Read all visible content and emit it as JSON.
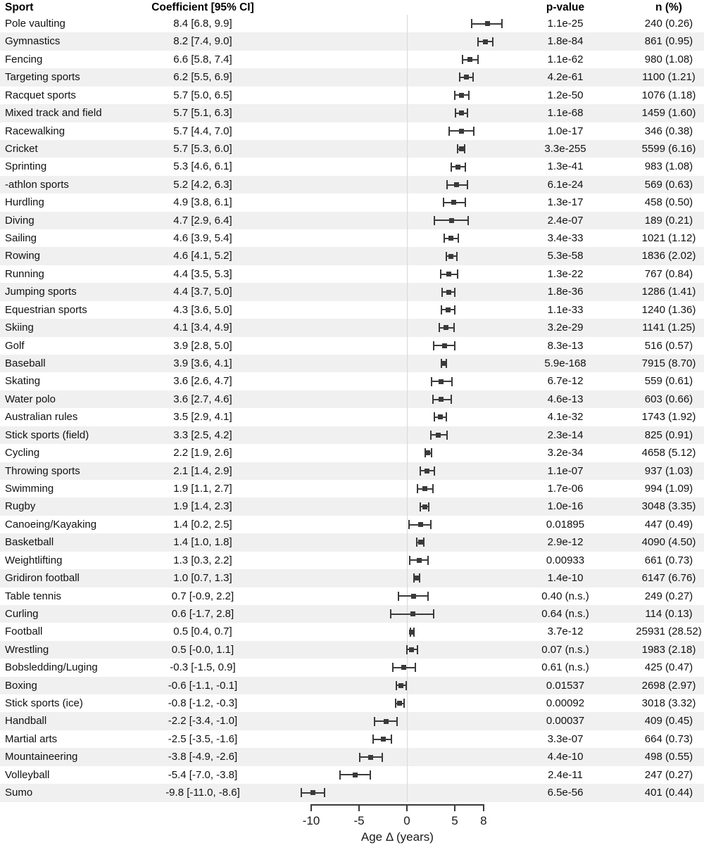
{
  "headers": {
    "sport": "Sport",
    "coefficient": "Coefficient [95% CI]",
    "p_value": "p-value",
    "n": "n (%)"
  },
  "colors": {
    "marker": "#3a3a3a",
    "stripe": "#f0f0f0",
    "reference_line": "#d8d8d8",
    "axis": "#3a3a3a"
  },
  "chart_data": {
    "type": "scatter",
    "subtype": "forest-plot",
    "title": "",
    "xlabel": "Age Δ (years)",
    "x_ticks": [
      -10,
      -5,
      0,
      5,
      8
    ],
    "xlim": [
      -11.5,
      10.5
    ],
    "reference_x": 0,
    "grid": false,
    "legend": "none",
    "columns": [
      "Sport",
      "Coefficient [95% CI]",
      "p-value",
      "n (%)"
    ],
    "rows": [
      {
        "sport": "Pole vaulting",
        "coef_label": "8.4 [6.8, 9.9]",
        "est": 8.4,
        "lo": 6.8,
        "hi": 9.9,
        "p": "1.1e-25",
        "n": "240 (0.26)"
      },
      {
        "sport": "Gymnastics",
        "coef_label": "8.2 [7.4, 9.0]",
        "est": 8.2,
        "lo": 7.4,
        "hi": 9.0,
        "p": "1.8e-84",
        "n": "861 (0.95)"
      },
      {
        "sport": "Fencing",
        "coef_label": "6.6 [5.8, 7.4]",
        "est": 6.6,
        "lo": 5.8,
        "hi": 7.4,
        "p": "1.1e-62",
        "n": "980 (1.08)"
      },
      {
        "sport": "Targeting sports",
        "coef_label": "6.2 [5.5, 6.9]",
        "est": 6.2,
        "lo": 5.5,
        "hi": 6.9,
        "p": "4.2e-61",
        "n": "1100 (1.21)"
      },
      {
        "sport": "Racquet sports",
        "coef_label": "5.7 [5.0, 6.5]",
        "est": 5.7,
        "lo": 5.0,
        "hi": 6.5,
        "p": "1.2e-50",
        "n": "1076 (1.18)"
      },
      {
        "sport": "Mixed track and field",
        "coef_label": "5.7 [5.1, 6.3]",
        "est": 5.7,
        "lo": 5.1,
        "hi": 6.3,
        "p": "1.1e-68",
        "n": "1459 (1.60)"
      },
      {
        "sport": "Racewalking",
        "coef_label": "5.7 [4.4, 7.0]",
        "est": 5.7,
        "lo": 4.4,
        "hi": 7.0,
        "p": "1.0e-17",
        "n": "346 (0.38)"
      },
      {
        "sport": "Cricket",
        "coef_label": "5.7 [5.3, 6.0]",
        "est": 5.7,
        "lo": 5.3,
        "hi": 6.0,
        "p": "3.3e-255",
        "n": "5599 (6.16)"
      },
      {
        "sport": "Sprinting",
        "coef_label": "5.3 [4.6, 6.1]",
        "est": 5.3,
        "lo": 4.6,
        "hi": 6.1,
        "p": "1.3e-41",
        "n": "983 (1.08)"
      },
      {
        "sport": "-athlon sports",
        "coef_label": "5.2 [4.2, 6.3]",
        "est": 5.2,
        "lo": 4.2,
        "hi": 6.3,
        "p": "6.1e-24",
        "n": "569 (0.63)"
      },
      {
        "sport": "Hurdling",
        "coef_label": "4.9 [3.8, 6.1]",
        "est": 4.9,
        "lo": 3.8,
        "hi": 6.1,
        "p": "1.3e-17",
        "n": "458 (0.50)"
      },
      {
        "sport": "Diving",
        "coef_label": "4.7 [2.9, 6.4]",
        "est": 4.7,
        "lo": 2.9,
        "hi": 6.4,
        "p": "2.4e-07",
        "n": "189 (0.21)"
      },
      {
        "sport": "Sailing",
        "coef_label": "4.6 [3.9, 5.4]",
        "est": 4.6,
        "lo": 3.9,
        "hi": 5.4,
        "p": "3.4e-33",
        "n": "1021 (1.12)"
      },
      {
        "sport": "Rowing",
        "coef_label": "4.6 [4.1, 5.2]",
        "est": 4.6,
        "lo": 4.1,
        "hi": 5.2,
        "p": "5.3e-58",
        "n": "1836 (2.02)"
      },
      {
        "sport": "Running",
        "coef_label": "4.4 [3.5, 5.3]",
        "est": 4.4,
        "lo": 3.5,
        "hi": 5.3,
        "p": "1.3e-22",
        "n": "767 (0.84)"
      },
      {
        "sport": "Jumping sports",
        "coef_label": "4.4 [3.7, 5.0]",
        "est": 4.4,
        "lo": 3.7,
        "hi": 5.0,
        "p": "1.8e-36",
        "n": "1286 (1.41)"
      },
      {
        "sport": "Equestrian sports",
        "coef_label": "4.3 [3.6, 5.0]",
        "est": 4.3,
        "lo": 3.6,
        "hi": 5.0,
        "p": "1.1e-33",
        "n": "1240 (1.36)"
      },
      {
        "sport": "Skiing",
        "coef_label": "4.1 [3.4, 4.9]",
        "est": 4.1,
        "lo": 3.4,
        "hi": 4.9,
        "p": "3.2e-29",
        "n": "1141 (1.25)"
      },
      {
        "sport": "Golf",
        "coef_label": "3.9 [2.8, 5.0]",
        "est": 3.9,
        "lo": 2.8,
        "hi": 5.0,
        "p": "8.3e-13",
        "n": "516 (0.57)"
      },
      {
        "sport": "Baseball",
        "coef_label": "3.9 [3.6, 4.1]",
        "est": 3.9,
        "lo": 3.6,
        "hi": 4.1,
        "p": "5.9e-168",
        "n": "7915 (8.70)"
      },
      {
        "sport": "Skating",
        "coef_label": "3.6 [2.6, 4.7]",
        "est": 3.6,
        "lo": 2.6,
        "hi": 4.7,
        "p": "6.7e-12",
        "n": "559 (0.61)"
      },
      {
        "sport": "Water polo",
        "coef_label": "3.6 [2.7, 4.6]",
        "est": 3.6,
        "lo": 2.7,
        "hi": 4.6,
        "p": "4.6e-13",
        "n": "603 (0.66)"
      },
      {
        "sport": "Australian rules",
        "coef_label": "3.5 [2.9, 4.1]",
        "est": 3.5,
        "lo": 2.9,
        "hi": 4.1,
        "p": "4.1e-32",
        "n": "1743 (1.92)"
      },
      {
        "sport": "Stick sports (field)",
        "coef_label": "3.3 [2.5, 4.2]",
        "est": 3.3,
        "lo": 2.5,
        "hi": 4.2,
        "p": "2.3e-14",
        "n": "825 (0.91)"
      },
      {
        "sport": "Cycling",
        "coef_label": "2.2 [1.9, 2.6]",
        "est": 2.2,
        "lo": 1.9,
        "hi": 2.6,
        "p": "3.2e-34",
        "n": "4658 (5.12)"
      },
      {
        "sport": "Throwing sports",
        "coef_label": "2.1 [1.4, 2.9]",
        "est": 2.1,
        "lo": 1.4,
        "hi": 2.9,
        "p": "1.1e-07",
        "n": "937 (1.03)"
      },
      {
        "sport": "Swimming",
        "coef_label": "1.9 [1.1, 2.7]",
        "est": 1.9,
        "lo": 1.1,
        "hi": 2.7,
        "p": "1.7e-06",
        "n": "994 (1.09)"
      },
      {
        "sport": "Rugby",
        "coef_label": "1.9 [1.4, 2.3]",
        "est": 1.9,
        "lo": 1.4,
        "hi": 2.3,
        "p": "1.0e-16",
        "n": "3048 (3.35)"
      },
      {
        "sport": "Canoeing/Kayaking",
        "coef_label": "1.4 [0.2, 2.5]",
        "est": 1.4,
        "lo": 0.2,
        "hi": 2.5,
        "p": "0.01895",
        "n": "447 (0.49)"
      },
      {
        "sport": "Basketball",
        "coef_label": "1.4 [1.0, 1.8]",
        "est": 1.4,
        "lo": 1.0,
        "hi": 1.8,
        "p": "2.9e-12",
        "n": "4090 (4.50)"
      },
      {
        "sport": "Weightlifting",
        "coef_label": "1.3 [0.3, 2.2]",
        "est": 1.3,
        "lo": 0.3,
        "hi": 2.2,
        "p": "0.00933",
        "n": "661 (0.73)"
      },
      {
        "sport": "Gridiron football",
        "coef_label": "1.0 [0.7, 1.3]",
        "est": 1.0,
        "lo": 0.7,
        "hi": 1.3,
        "p": "1.4e-10",
        "n": "6147 (6.76)"
      },
      {
        "sport": "Table tennis",
        "coef_label": "0.7 [-0.9, 2.2]",
        "est": 0.7,
        "lo": -0.9,
        "hi": 2.2,
        "p": "0.40 (n.s.)",
        "n": "249 (0.27)"
      },
      {
        "sport": "Curling",
        "coef_label": "0.6 [-1.7, 2.8]",
        "est": 0.6,
        "lo": -1.7,
        "hi": 2.8,
        "p": "0.64 (n.s.)",
        "n": "114 (0.13)"
      },
      {
        "sport": "Football",
        "coef_label": "0.5 [0.4, 0.7]",
        "est": 0.5,
        "lo": 0.4,
        "hi": 0.7,
        "p": "3.7e-12",
        "n": "25931 (28.52)"
      },
      {
        "sport": "Wrestling",
        "coef_label": "0.5 [-0.0, 1.1]",
        "est": 0.5,
        "lo": -0.0,
        "hi": 1.1,
        "p": "0.07 (n.s.)",
        "n": "1983 (2.18)"
      },
      {
        "sport": "Bobsledding/Luging",
        "coef_label": "-0.3 [-1.5, 0.9]",
        "est": -0.3,
        "lo": -1.5,
        "hi": 0.9,
        "p": "0.61 (n.s.)",
        "n": "425 (0.47)"
      },
      {
        "sport": "Boxing",
        "coef_label": "-0.6 [-1.1, -0.1]",
        "est": -0.6,
        "lo": -1.1,
        "hi": -0.1,
        "p": "0.01537",
        "n": "2698 (2.97)"
      },
      {
        "sport": "Stick sports (ice)",
        "coef_label": "-0.8 [-1.2, -0.3]",
        "est": -0.8,
        "lo": -1.2,
        "hi": -0.3,
        "p": "0.00092",
        "n": "3018 (3.32)"
      },
      {
        "sport": "Handball",
        "coef_label": "-2.2 [-3.4, -1.0]",
        "est": -2.2,
        "lo": -3.4,
        "hi": -1.0,
        "p": "0.00037",
        "n": "409 (0.45)"
      },
      {
        "sport": "Martial arts",
        "coef_label": "-2.5 [-3.5, -1.6]",
        "est": -2.5,
        "lo": -3.5,
        "hi": -1.6,
        "p": "3.3e-07",
        "n": "664 (0.73)"
      },
      {
        "sport": "Mountaineering",
        "coef_label": "-3.8 [-4.9, -2.6]",
        "est": -3.8,
        "lo": -4.9,
        "hi": -2.6,
        "p": "4.4e-10",
        "n": "498 (0.55)"
      },
      {
        "sport": "Volleyball",
        "coef_label": "-5.4 [-7.0, -3.8]",
        "est": -5.4,
        "lo": -7.0,
        "hi": -3.8,
        "p": "2.4e-11",
        "n": "247 (0.27)"
      },
      {
        "sport": "Sumo",
        "coef_label": "-9.8 [-11.0, -8.6]",
        "est": -9.8,
        "lo": -11.0,
        "hi": -8.6,
        "p": "6.5e-56",
        "n": "401 (0.44)"
      }
    ]
  }
}
